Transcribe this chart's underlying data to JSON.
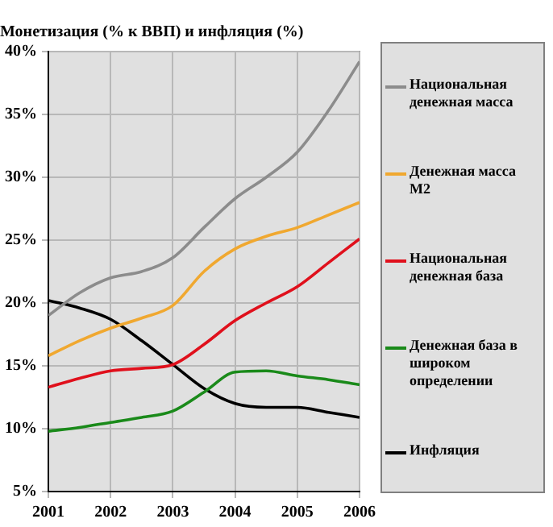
{
  "chart_data": {
    "type": "line",
    "title": "Монетизация (% к ВВП) и инфляция (%)",
    "x": [
      2001,
      2001.5,
      2002,
      2002.5,
      2003,
      2003.5,
      2004,
      2004.5,
      2005,
      2005.5,
      2006
    ],
    "series": [
      {
        "name": "Национальная денежная масса",
        "color": "#8c8c8c",
        "values": [
          19,
          20.8,
          22,
          22.5,
          23.6,
          26,
          28.3,
          30,
          32,
          35.3,
          39.2
        ]
      },
      {
        "name": "Денежная масса М2",
        "color": "#f0a830",
        "values": [
          15.8,
          17,
          18,
          18.8,
          19.8,
          22.5,
          24.3,
          25.3,
          26,
          27,
          28
        ]
      },
      {
        "name": "Национальная денежная база",
        "color": "#e0101c",
        "values": [
          13.3,
          14,
          14.6,
          14.8,
          15.1,
          16.7,
          18.6,
          20,
          21.3,
          23.2,
          25.1
        ]
      },
      {
        "name": "Денежная база в широком определении",
        "color": "#1a8a1a",
        "values": [
          9.8,
          10.1,
          10.5,
          10.9,
          11.4,
          12.9,
          14.5,
          14.6,
          14.2,
          13.9,
          13.5
        ]
      },
      {
        "name": "Инфляция",
        "color": "#000000",
        "values": [
          20.2,
          19.6,
          18.7,
          17,
          15.1,
          13.2,
          12,
          11.7,
          11.7,
          11.3,
          10.9
        ]
      }
    ],
    "xlim": [
      2001,
      2006
    ],
    "xticks": [
      2001,
      2002,
      2003,
      2004,
      2005,
      2006
    ],
    "ylim": [
      5,
      40
    ],
    "yticks": [
      {
        "value": 5,
        "label": "5%"
      },
      {
        "value": 10,
        "label": "10%"
      },
      {
        "value": 15,
        "label": "15%"
      },
      {
        "value": 20,
        "label": "20%"
      },
      {
        "value": 25,
        "label": "25%"
      },
      {
        "value": 30,
        "label": "30%"
      },
      {
        "value": 35,
        "label": "35%"
      },
      {
        "value": 40,
        "label": "40%"
      }
    ],
    "grid": true,
    "legend": "right"
  }
}
